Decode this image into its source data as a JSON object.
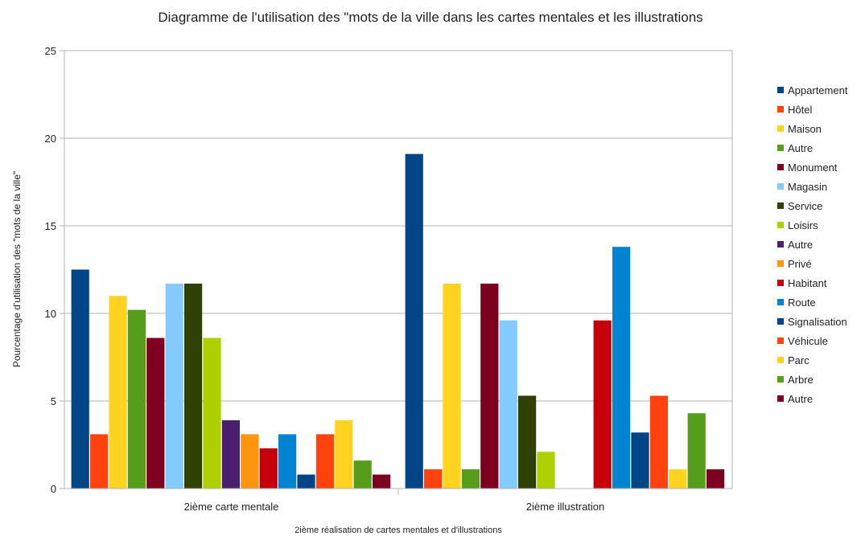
{
  "chart_data": {
    "type": "bar",
    "title": "Diagramme de l'utilisation des \"mots de la ville dans les cartes mentales et les illustrations",
    "xlabel": "2ième réalisation de cartes mentales et d'illustrations",
    "ylabel": "Pourcentage d'utilisation des \"mots de la ville\"",
    "ylim": [
      0,
      25
    ],
    "yticks": [
      0,
      5,
      10,
      15,
      20,
      25
    ],
    "grid": true,
    "legend_position": "right",
    "categories": [
      "2ième carte mentale",
      "2ième illustration"
    ],
    "series": [
      {
        "name": "Appartement",
        "color": "#004586",
        "values": [
          12.5,
          19.1
        ]
      },
      {
        "name": "Hôtel",
        "color": "#ff420e",
        "values": [
          3.1,
          1.1
        ]
      },
      {
        "name": "Maison",
        "color": "#ffd320",
        "values": [
          11.0,
          11.7
        ]
      },
      {
        "name": "Autre",
        "color": "#579d1c",
        "values": [
          10.2,
          1.1
        ]
      },
      {
        "name": "Monument",
        "color": "#7e0021",
        "values": [
          8.6,
          11.7
        ]
      },
      {
        "name": "Magasin",
        "color": "#83caff",
        "values": [
          11.7,
          9.6
        ]
      },
      {
        "name": "Service",
        "color": "#314004",
        "values": [
          11.7,
          5.3
        ]
      },
      {
        "name": "Loisirs",
        "color": "#aecf00",
        "values": [
          8.6,
          2.1
        ]
      },
      {
        "name": "Autre",
        "color": "#4b1f6f",
        "values": [
          3.9,
          0
        ]
      },
      {
        "name": "Privé",
        "color": "#ff950e",
        "values": [
          3.1,
          0
        ]
      },
      {
        "name": "Habitant",
        "color": "#c5000b",
        "values": [
          2.3,
          9.6
        ]
      },
      {
        "name": "Route",
        "color": "#0084d1",
        "values": [
          3.1,
          13.8
        ]
      },
      {
        "name": "Signalisation",
        "color": "#004586",
        "values": [
          0.8,
          3.2
        ]
      },
      {
        "name": "Véhicule",
        "color": "#ff420e",
        "values": [
          3.1,
          5.3
        ]
      },
      {
        "name": "Parc",
        "color": "#ffd320",
        "values": [
          3.9,
          1.1
        ]
      },
      {
        "name": "Arbre",
        "color": "#579d1c",
        "values": [
          1.6,
          4.3
        ]
      },
      {
        "name": "Autre",
        "color": "#7e0021",
        "values": [
          0.8,
          1.1
        ]
      }
    ]
  }
}
